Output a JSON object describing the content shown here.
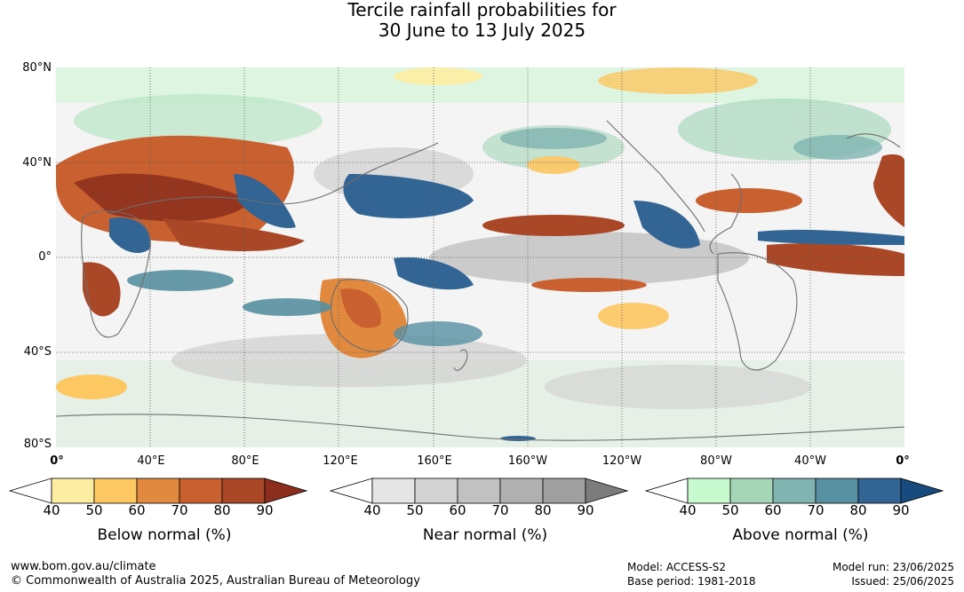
{
  "title": {
    "line1": "Tercile rainfall probabilities for",
    "line2": "30 June to 13 July 2025"
  },
  "map": {
    "lat_labels": [
      "80°N",
      "40°N",
      "0°",
      "40°S",
      "80°S"
    ],
    "lon_labels": [
      "0°",
      "40°E",
      "80°E",
      "120°E",
      "160°E",
      "160°W",
      "120°W",
      "80°W",
      "40°W",
      "0°"
    ]
  },
  "colorbars": [
    {
      "title": "Below normal (%)",
      "ticks": [
        "40",
        "50",
        "60",
        "70",
        "80",
        "90"
      ],
      "colors": [
        "#ffffff",
        "#fdeda2",
        "#fdc762",
        "#e0893f",
        "#c9602f",
        "#aa4726",
        "#8b2e1d"
      ]
    },
    {
      "title": "Near normal (%)",
      "ticks": [
        "40",
        "50",
        "60",
        "70",
        "80",
        "90"
      ],
      "colors": [
        "#ffffff",
        "#e5e5e5",
        "#d3d3d3",
        "#c1c1c1",
        "#b0b0b0",
        "#9f9f9f",
        "#7c7c7c"
      ]
    },
    {
      "title": "Above normal (%)",
      "ticks": [
        "40",
        "50",
        "60",
        "70",
        "80",
        "90"
      ],
      "colors": [
        "#ffffff",
        "#c7fbcf",
        "#a5d6b8",
        "#80b4b0",
        "#5690a1",
        "#326593",
        "#174a7e"
      ]
    }
  ],
  "footer": {
    "website": "www.bom.gov.au/climate",
    "copyright": "© Commonwealth of Australia 2025, Australian Bureau of Meteorology",
    "model": "Model: ACCESS-S2",
    "base_period": "Base period: 1981-2018",
    "model_run": "Model run: 23/06/2025",
    "issued": "Issued: 25/06/2025"
  }
}
